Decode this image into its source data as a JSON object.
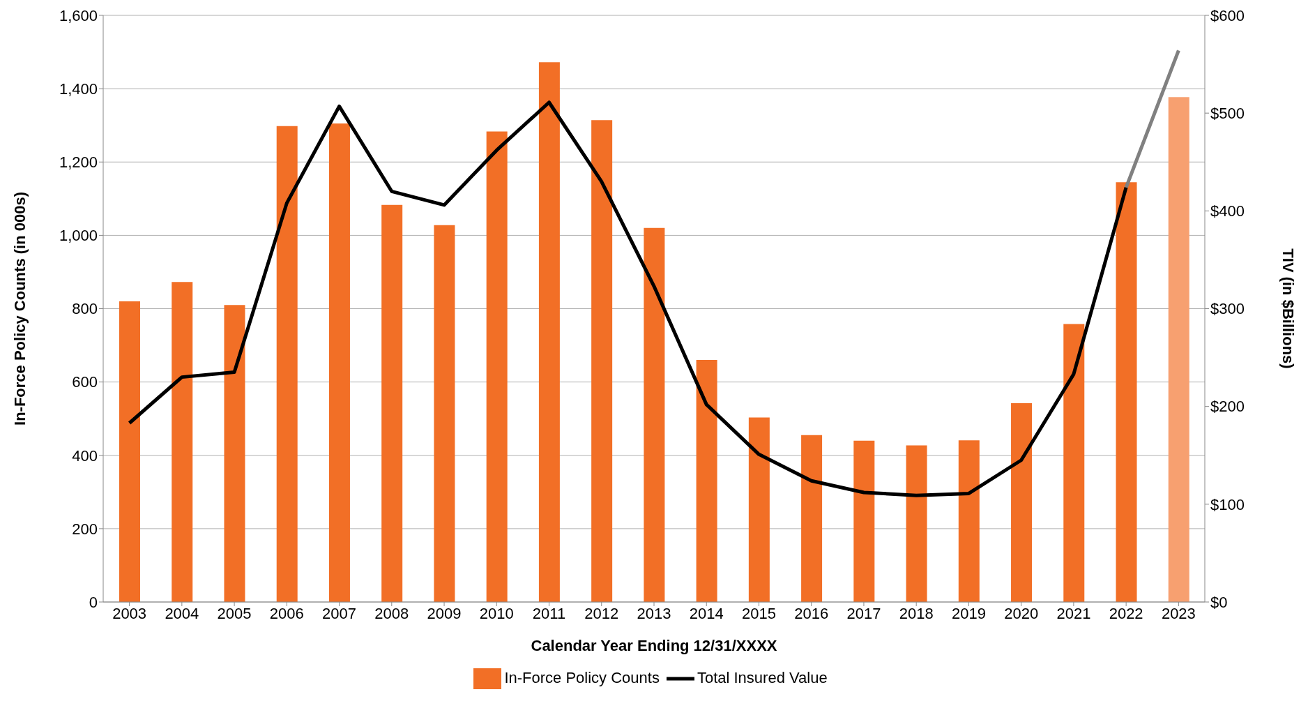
{
  "chart_data": {
    "type": "bar",
    "xlabel": "Calendar Year Ending 12/31/XXXX",
    "ylabel": "In-Force Policy Counts (in 000s)",
    "y2label": "TIV (in $Billions)",
    "categories": [
      "2003",
      "2004",
      "2005",
      "2006",
      "2007",
      "2008",
      "2009",
      "2010",
      "2011",
      "2012",
      "2013",
      "2014",
      "2015",
      "2016",
      "2017",
      "2018",
      "2019",
      "2020",
      "2021",
      "2022",
      "2023"
    ],
    "series": [
      {
        "name": "In-Force Policy Counts",
        "color": "#f26f26",
        "colors": [
          "#f26f26",
          "#f26f26",
          "#f26f26",
          "#f26f26",
          "#f26f26",
          "#f26f26",
          "#f26f26",
          "#f26f26",
          "#f26f26",
          "#f26f26",
          "#f26f26",
          "#f26f26",
          "#f26f26",
          "#f26f26",
          "#f26f26",
          "#f26f26",
          "#f26f26",
          "#f26f26",
          "#f26f26",
          "#f26f26",
          "#f7a070"
        ],
        "values": [
          820,
          873,
          810,
          1298,
          1305,
          1083,
          1028,
          1283,
          1472,
          1314,
          1020,
          660,
          503,
          455,
          440,
          427,
          441,
          542,
          758,
          1145,
          1377
        ]
      },
      {
        "name": "Total Insured Value",
        "type": "line",
        "axis": "y2",
        "color": "#000000",
        "values": [
          183,
          230,
          235,
          408,
          507,
          420,
          406,
          462,
          511,
          430,
          323,
          202,
          151,
          124,
          112,
          109,
          111,
          145,
          233,
          424,
          null
        ]
      },
      {
        "type": "line",
        "axis": "y2",
        "color": "#808080",
        "values": [
          null,
          null,
          null,
          null,
          null,
          null,
          null,
          null,
          null,
          null,
          null,
          null,
          null,
          null,
          null,
          null,
          null,
          null,
          null,
          424,
          564
        ]
      }
    ],
    "ylim": [
      0,
      1600
    ],
    "yticks": [
      {
        "value": 0,
        "label": "0"
      },
      {
        "value": 200,
        "label": "200"
      },
      {
        "value": 400,
        "label": "400"
      },
      {
        "value": 600,
        "label": "600"
      },
      {
        "value": 800,
        "label": "800"
      },
      {
        "value": 1000,
        "label": "1,000"
      },
      {
        "value": 1200,
        "label": "1,200"
      },
      {
        "value": 1400,
        "label": "1,400"
      },
      {
        "value": 1600,
        "label": "1,600"
      }
    ],
    "y2lim": [
      0,
      600
    ],
    "y2ticks": [
      {
        "value": 0,
        "label": "$0"
      },
      {
        "value": 100,
        "label": "$100"
      },
      {
        "value": 200,
        "label": "$200"
      },
      {
        "value": 300,
        "label": "$300"
      },
      {
        "value": 400,
        "label": "$400"
      },
      {
        "value": 500,
        "label": "$500"
      },
      {
        "value": 600,
        "label": "$600"
      }
    ],
    "grid": "y",
    "legend": "bottom",
    "marker": "none"
  }
}
